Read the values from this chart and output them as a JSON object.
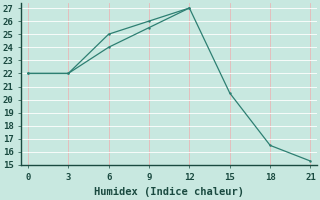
{
  "xlabel": "Humidex (Indice chaleur)",
  "line1_x": [
    0,
    3,
    6,
    9,
    12
  ],
  "line1_y": [
    22,
    22,
    25,
    26,
    27
  ],
  "line2_x": [
    0,
    3,
    6,
    9,
    12,
    15,
    18,
    21
  ],
  "line2_y": [
    22,
    22,
    24,
    25.5,
    27,
    20.5,
    16.5,
    15.3
  ],
  "line_color": "#2d7f72",
  "bg_color": "#c8e8e0",
  "grid_color_major": "#ffffff",
  "grid_color_minor": "#e8c8c8",
  "xlim": [
    -0.5,
    21.5
  ],
  "ylim": [
    15,
    27.4
  ],
  "xticks": [
    0,
    3,
    6,
    9,
    12,
    15,
    18,
    21
  ],
  "yticks": [
    15,
    16,
    17,
    18,
    19,
    20,
    21,
    22,
    23,
    24,
    25,
    26,
    27
  ],
  "tick_fontsize": 6.5,
  "xlabel_fontsize": 7.5
}
